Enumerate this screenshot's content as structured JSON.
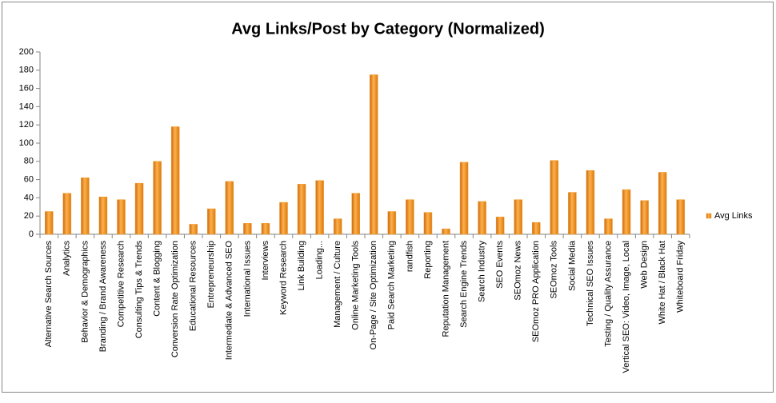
{
  "chart_data": {
    "type": "bar",
    "title": "Avg Links/Post by Category (Normalized)",
    "categories": [
      "Alternative Search Sources",
      "Analytics",
      "Behavior & Demographics",
      "Branding / Brand Awareness",
      "Competitive Research",
      "Consulting Tips & Trends",
      "Content & Blogging",
      "Conversion Rate Optimization",
      "Educational Resources",
      "Entrepreneurship",
      "Intermediate & Advanced SEO",
      "International Issues",
      "Interviews",
      "Keyword Research",
      "Link Building",
      "Loading...",
      "Management / Culture",
      "Online Marketing Tools",
      "On-Page / Site Optimization",
      "Paid Search Marketing",
      "randfish",
      "Reporting",
      "Reputation Management",
      "Search Engine Trends",
      "Search Industry",
      "SEO Events",
      "SEOmoz News",
      "SEOmoz PRO Application",
      "SEOmoz Tools",
      "Social Media",
      "Technical SEO Issues",
      "Testing / Quality Assurance",
      "Vertical SEO: Video, Image, Local",
      "Web Design",
      "White Hat / Black Hat",
      "Whiteboard Friday"
    ],
    "series": [
      {
        "name": "Avg Links",
        "color": "#f39a2b",
        "values": [
          25,
          45,
          62,
          41,
          38,
          56,
          80,
          118,
          11,
          28,
          58,
          12,
          12,
          35,
          55,
          59,
          17,
          45,
          175,
          25,
          38,
          24,
          6,
          79,
          36,
          19,
          38,
          13,
          81,
          46,
          70,
          17,
          49,
          37,
          68,
          38
        ]
      }
    ],
    "ylim": [
      0,
      200
    ],
    "yticks": [
      0,
      20,
      40,
      60,
      80,
      100,
      120,
      140,
      160,
      180,
      200
    ],
    "grid": false,
    "legend": "right"
  }
}
